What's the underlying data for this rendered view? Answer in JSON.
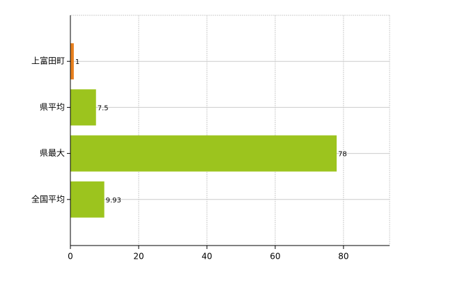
{
  "chart_data": {
    "type": "hbar",
    "categories": [
      "上富田町",
      "県平均",
      "県最大",
      "全国平均"
    ],
    "values": [
      1,
      7.5,
      78,
      9.93
    ],
    "colors": [
      "#e8801e",
      "#9cc41e",
      "#9cc41e",
      "#9cc41e"
    ],
    "xlim": [
      0,
      93.5
    ],
    "xticks": [
      0,
      20,
      40,
      60,
      80
    ],
    "grid": true
  }
}
